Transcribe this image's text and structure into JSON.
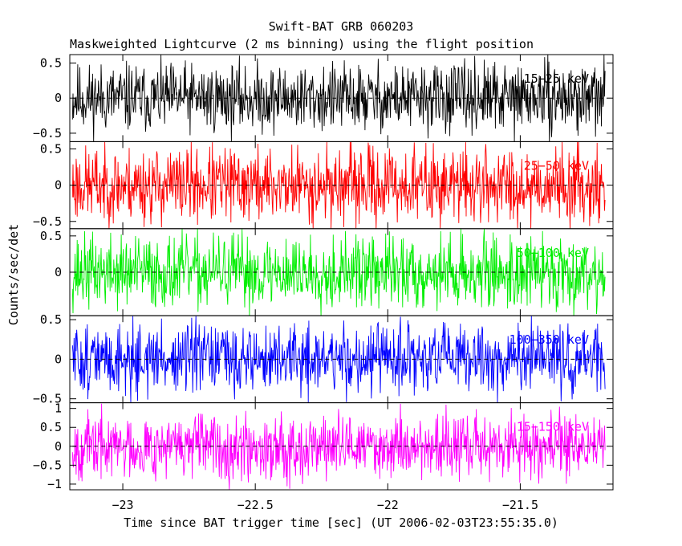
{
  "chart_data": {
    "type": "line",
    "title": "Swift-BAT GRB 060203",
    "subtitle": "Maskweighted Lightcurve (2 ms binning) using the flight position",
    "xlabel": "Time since BAT trigger time [sec] (UT 2006-02-03T23:55:35.0)",
    "ylabel": "Counts/sec/det",
    "xlim": [
      -23.2,
      -21.15
    ],
    "x_ticks": [
      -23,
      -22.5,
      -22,
      -21.5
    ],
    "x_tick_labels": [
      "−23",
      "−22.5",
      "−22",
      "−21.5"
    ],
    "x_start": -23.19,
    "x_end": -21.18,
    "bin_width": 0.002,
    "grid": false,
    "panels": [
      {
        "band": "15−25 keV",
        "color": "#000000",
        "ylim": [
          -0.62,
          0.62
        ],
        "y_ticks": [
          0.5,
          0,
          -0.5
        ],
        "y_tick_labels": [
          "0.5",
          "0",
          "−0.5"
        ],
        "amplitude": 0.24,
        "seed": 11
      },
      {
        "band": "25−50 keV",
        "color": "#ff0000",
        "ylim": [
          -0.6,
          0.6
        ],
        "y_ticks": [
          0.5,
          0,
          -0.5
        ],
        "y_tick_labels": [
          "0.5",
          "0",
          "−0.5"
        ],
        "amplitude": 0.26,
        "seed": 23
      },
      {
        "band": "50−100 keV",
        "color": "#00ee00",
        "ylim": [
          -0.6,
          0.6
        ],
        "y_ticks": [
          0.5,
          0
        ],
        "y_tick_labels": [
          "0.5",
          "0"
        ],
        "amplitude": 0.25,
        "seed": 37
      },
      {
        "band": "100−350 keV",
        "color": "#0000ff",
        "ylim": [
          -0.55,
          0.55
        ],
        "y_ticks": [
          0.5,
          0,
          -0.5
        ],
        "y_tick_labels": [
          "0.5",
          "0",
          "−0.5"
        ],
        "amplitude": 0.22,
        "seed": 51
      },
      {
        "band": "15−150 keV",
        "color": "#ff00ff",
        "ylim": [
          -1.15,
          1.15
        ],
        "y_ticks": [
          1,
          0.5,
          0,
          -0.5,
          -1
        ],
        "y_tick_labels": [
          "1",
          "0.5",
          "0",
          "−0.5",
          "−1"
        ],
        "amplitude": 0.42,
        "seed": 67
      }
    ]
  }
}
